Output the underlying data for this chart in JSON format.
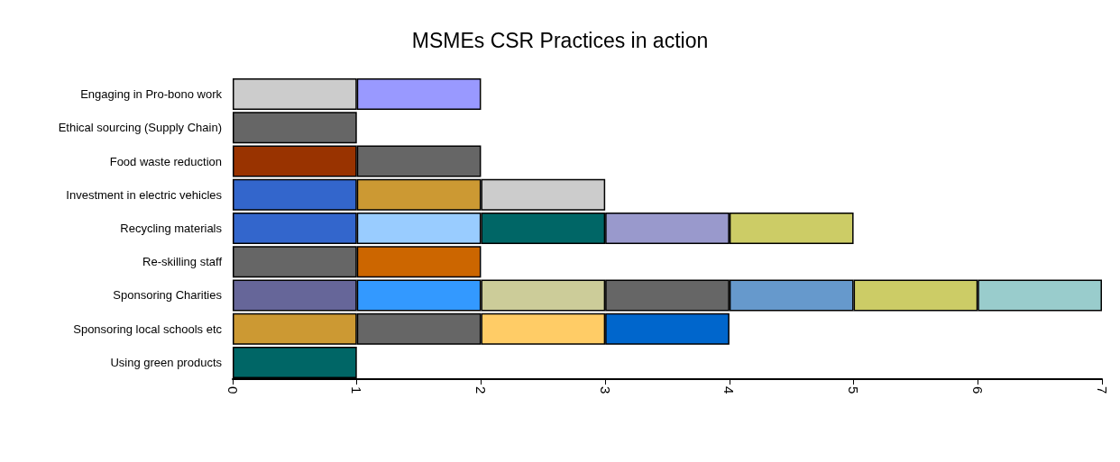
{
  "chart_data": {
    "type": "bar",
    "title": "MSMEs CSR Practices in action",
    "orientation": "horizontal",
    "stacked": true,
    "grid": false,
    "categories": [
      "Engaging in Pro-bono work",
      "Ethical sourcing (Supply Chain)",
      "Food waste reduction",
      "Investment in electric vehicles",
      "Recycling materials",
      "Re-skilling staff",
      "Sponsoring Charities",
      "Sponsoring local schools etc",
      "Using green products"
    ],
    "xlim": [
      0,
      7
    ],
    "xticks": [
      0,
      1,
      2,
      3,
      4,
      5,
      6,
      7
    ],
    "series": [
      {
        "values": [
          1,
          1,
          1,
          1,
          1,
          1,
          1,
          1,
          1
        ],
        "colors": [
          "#cccccc",
          "#666666",
          "#993300",
          "#3366cc",
          "#3366cc",
          "#666666",
          "#666699",
          "#cc9933",
          "#006666"
        ]
      },
      {
        "values": [
          1,
          null,
          1,
          1,
          1,
          1,
          1,
          1,
          null
        ],
        "colors": [
          "#9999ff",
          null,
          "#666666",
          "#cc9933",
          "#99ccff",
          "#cc6600",
          "#3399ff",
          "#666666",
          null
        ]
      },
      {
        "values": [
          null,
          null,
          null,
          1,
          1,
          null,
          1,
          1,
          null
        ],
        "colors": [
          null,
          null,
          null,
          "#cccccc",
          "#006666",
          null,
          "#cccc99",
          "#ffcc66",
          null
        ]
      },
      {
        "values": [
          null,
          null,
          null,
          null,
          1,
          null,
          1,
          1,
          null
        ],
        "colors": [
          null,
          null,
          null,
          null,
          "#9999cc",
          null,
          "#666666",
          "#0066cc",
          null
        ]
      },
      {
        "values": [
          null,
          null,
          null,
          null,
          1,
          null,
          1,
          null,
          null
        ],
        "colors": [
          null,
          null,
          null,
          null,
          "#cccc66",
          null,
          "#6699cc",
          null,
          null
        ]
      },
      {
        "values": [
          null,
          null,
          null,
          null,
          null,
          null,
          1,
          null,
          null
        ],
        "colors": [
          null,
          null,
          null,
          null,
          null,
          null,
          "#cccc66",
          null,
          null
        ]
      },
      {
        "values": [
          null,
          null,
          null,
          null,
          null,
          null,
          1,
          null,
          null
        ],
        "colors": [
          null,
          null,
          null,
          null,
          null,
          null,
          "#99cccc",
          null,
          null
        ]
      }
    ]
  }
}
